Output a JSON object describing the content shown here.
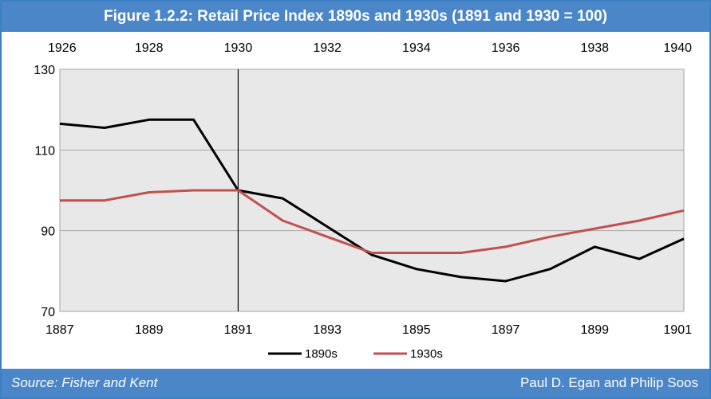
{
  "title": "Figure 1.2.2: Retail Price Index 1890s and 1930s (1891 and 1930 = 100)",
  "footer": {
    "source": "Source: Fisher and Kent",
    "credit": "Paul D. Egan and Philip Soos"
  },
  "chart_data": {
    "type": "line",
    "x_bottom": [
      1887,
      1888,
      1889,
      1890,
      1891,
      1892,
      1893,
      1894,
      1895,
      1896,
      1897,
      1898,
      1899,
      1900,
      1901
    ],
    "x_bottom_ticks": [
      "1887",
      "1889",
      "1891",
      "1893",
      "1895",
      "1897",
      "1899",
      "1901"
    ],
    "x_top": [
      1926,
      1927,
      1928,
      1929,
      1930,
      1931,
      1932,
      1933,
      1934,
      1935,
      1936,
      1937,
      1938,
      1939,
      1940
    ],
    "x_top_ticks": [
      "1926",
      "1928",
      "1930",
      "1932",
      "1934",
      "1936",
      "1938",
      "1940"
    ],
    "y_ticks": [
      "70",
      "90",
      "110",
      "130"
    ],
    "ylim": [
      70,
      130
    ],
    "grid": true,
    "reference_line_x": 1891,
    "legend_position": "bottom",
    "series": [
      {
        "name": "1890s",
        "color": "#000000",
        "axis": "bottom",
        "values": [
          116.5,
          115.5,
          117.5,
          117.5,
          100,
          98,
          91,
          84,
          80.5,
          78.5,
          77.5,
          80.5,
          86,
          83,
          88
        ]
      },
      {
        "name": "1930s",
        "color": "#c0504d",
        "axis": "top",
        "values": [
          97.5,
          97.5,
          99.5,
          100,
          100,
          92.5,
          88.5,
          84.5,
          84.5,
          84.5,
          86,
          88.5,
          90.5,
          92.5,
          95
        ]
      }
    ]
  }
}
